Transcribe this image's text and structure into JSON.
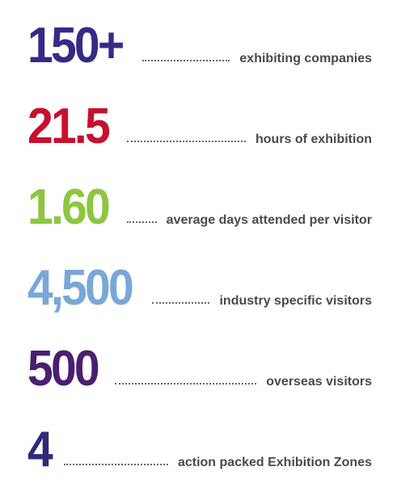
{
  "items": [
    {
      "number": "150+",
      "label": "exhibiting companies",
      "color": "#352b87"
    },
    {
      "number": "21.5",
      "label": "hours of exhibition",
      "color": "#c8102e"
    },
    {
      "number": "1.60",
      "label": "average days attended per visitor",
      "color": "#8dc63f"
    },
    {
      "number": "4,500",
      "label": "industry specific visitors",
      "color": "#7aa7d8"
    },
    {
      "number": "500",
      "label": "overseas visitors",
      "color": "#4a1f6f"
    },
    {
      "number": "4",
      "label": "action packed Exhibition Zones",
      "color": "#2f2b7c"
    }
  ]
}
